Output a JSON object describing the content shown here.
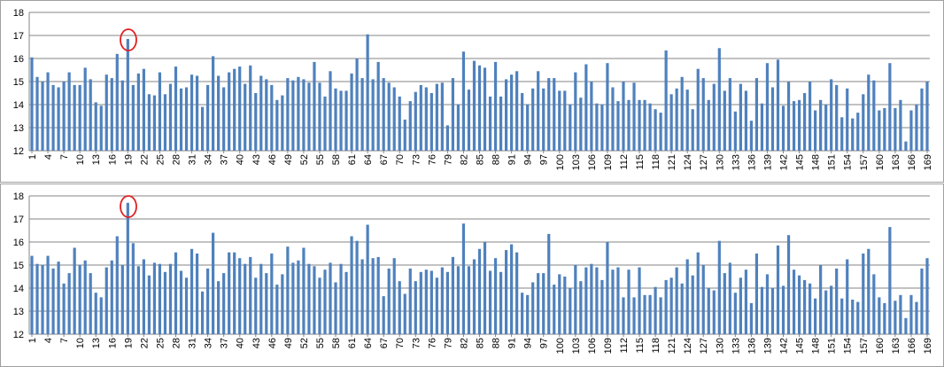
{
  "chart_data": [
    {
      "type": "bar",
      "color": "#4f81bd",
      "grid": true,
      "ylim": [
        12,
        18
      ],
      "yticks": [
        12,
        13,
        14,
        15,
        16,
        17,
        18
      ],
      "categories": [
        "1",
        null,
        null,
        "4",
        null,
        null,
        "7",
        null,
        null,
        "10",
        null,
        null,
        "13",
        null,
        null,
        "16",
        null,
        null,
        "19",
        null,
        null,
        "22",
        null,
        null,
        "25",
        null,
        null,
        "28",
        null,
        null,
        "31",
        null,
        null,
        "34",
        null,
        null,
        "37",
        null,
        null,
        "40",
        null,
        null,
        "43",
        null,
        null,
        "46",
        null,
        null,
        "49",
        null,
        null,
        "52",
        null,
        null,
        "55",
        null,
        null,
        "58",
        null,
        null,
        "61",
        null,
        null,
        "64",
        null,
        null,
        "67",
        null,
        null,
        "70",
        null,
        null,
        "73",
        null,
        null,
        "76",
        null,
        null,
        "79",
        null,
        null,
        "82",
        null,
        null,
        "85",
        null,
        null,
        "88",
        null,
        null,
        "91",
        null,
        null,
        "94",
        null,
        null,
        "97",
        null,
        null,
        "100",
        null,
        null,
        "103",
        null,
        null,
        "106",
        null,
        null,
        "109",
        null,
        null,
        "112",
        null,
        null,
        "115",
        null,
        null,
        "118",
        null,
        null,
        "121",
        null,
        null,
        "124",
        null,
        null,
        "127",
        null,
        null,
        "130",
        null,
        null,
        "133",
        null,
        null,
        "136",
        null,
        null,
        "139",
        null,
        null,
        "142",
        null,
        null,
        "145",
        null,
        null,
        "148",
        null,
        null,
        "151",
        null,
        null,
        "154",
        null,
        null,
        "157",
        null,
        null,
        "160",
        null,
        null,
        "163",
        null,
        null,
        "166",
        null,
        null,
        "169"
      ],
      "values": [
        16.05,
        15.2,
        15.0,
        15.4,
        14.85,
        14.75,
        15.0,
        15.4,
        14.85,
        14.85,
        15.6,
        15.1,
        14.1,
        13.95,
        15.3,
        15.15,
        16.2,
        15.05,
        16.85,
        14.85,
        15.35,
        15.55,
        14.45,
        14.4,
        15.4,
        14.45,
        14.9,
        15.65,
        14.7,
        14.75,
        15.3,
        15.25,
        13.9,
        14.85,
        16.1,
        15.25,
        14.75,
        15.4,
        15.55,
        15.65,
        14.9,
        15.7,
        14.5,
        15.25,
        15.1,
        14.85,
        14.2,
        14.4,
        15.15,
        15.05,
        15.2,
        15.1,
        14.95,
        15.85,
        14.95,
        14.35,
        15.45,
        14.7,
        14.6,
        14.6,
        15.35,
        16.0,
        15.15,
        17.05,
        15.1,
        15.85,
        15.15,
        14.95,
        14.75,
        14.35,
        13.35,
        14.15,
        14.55,
        14.85,
        14.75,
        14.5,
        14.9,
        14.95,
        13.1,
        15.15,
        14.0,
        16.3,
        14.65,
        15.9,
        15.7,
        15.6,
        14.35,
        15.85,
        14.35,
        15.1,
        15.3,
        15.45,
        14.5,
        14.0,
        14.7,
        15.45,
        14.7,
        15.15,
        15.15,
        14.6,
        14.6,
        14.0,
        15.4,
        14.3,
        15.75,
        15.0,
        14.05,
        14.0,
        15.8,
        14.75,
        14.15,
        15.0,
        14.2,
        14.95,
        14.2,
        14.2,
        14.05,
        13.8,
        13.65,
        16.35,
        14.45,
        14.7,
        15.2,
        14.65,
        13.8,
        15.55,
        15.15,
        14.2,
        14.9,
        16.45,
        14.6,
        15.15,
        13.7,
        14.9,
        14.6,
        13.3,
        15.15,
        14.05,
        15.8,
        14.75,
        15.95,
        13.95,
        15.0,
        14.15,
        14.2,
        14.5,
        15.0,
        13.75,
        14.2,
        14.0,
        15.1,
        14.85,
        13.45,
        14.7,
        13.4,
        13.65,
        14.45,
        15.3,
        15.05,
        13.75,
        13.85,
        15.8,
        13.85,
        14.2,
        12.4,
        13.75,
        14.0,
        14.7,
        15.0
      ]
    },
    {
      "type": "bar",
      "color": "#4f81bd",
      "grid": true,
      "ylim": [
        12,
        18
      ],
      "yticks": [
        12,
        13,
        14,
        15,
        16,
        17,
        18
      ],
      "categories": [
        "1",
        null,
        null,
        "4",
        null,
        null,
        "7",
        null,
        null,
        "10",
        null,
        null,
        "13",
        null,
        null,
        "16",
        null,
        null,
        "19",
        null,
        null,
        "22",
        null,
        null,
        "25",
        null,
        null,
        "28",
        null,
        null,
        "31",
        null,
        null,
        "34",
        null,
        null,
        "37",
        null,
        null,
        "40",
        null,
        null,
        "43",
        null,
        null,
        "46",
        null,
        null,
        "49",
        null,
        null,
        "52",
        null,
        null,
        "55",
        null,
        null,
        "58",
        null,
        null,
        "61",
        null,
        null,
        "64",
        null,
        null,
        "67",
        null,
        null,
        "70",
        null,
        null,
        "73",
        null,
        null,
        "76",
        null,
        null,
        "79",
        null,
        null,
        "82",
        null,
        null,
        "85",
        null,
        null,
        "88",
        null,
        null,
        "91",
        null,
        null,
        "94",
        null,
        null,
        "97",
        null,
        null,
        "100",
        null,
        null,
        "103",
        null,
        null,
        "106",
        null,
        null,
        "109",
        null,
        null,
        "112",
        null,
        null,
        "115",
        null,
        null,
        "118",
        null,
        null,
        "121",
        null,
        null,
        "124",
        null,
        null,
        "127",
        null,
        null,
        "130",
        null,
        null,
        "133",
        null,
        null,
        "136",
        null,
        null,
        "139",
        null,
        null,
        "142",
        null,
        null,
        "145",
        null,
        null,
        "148",
        null,
        null,
        "151",
        null,
        null,
        "154",
        null,
        null,
        "157",
        null,
        null,
        "160",
        null,
        null,
        "163",
        null,
        null,
        "166",
        null,
        null,
        "169"
      ],
      "values": [
        15.4,
        15.05,
        15.0,
        15.4,
        14.85,
        15.15,
        14.2,
        14.65,
        15.75,
        15.0,
        15.2,
        14.65,
        13.8,
        13.6,
        14.9,
        15.2,
        16.25,
        15.0,
        17.7,
        15.95,
        14.95,
        15.25,
        14.55,
        15.1,
        15.05,
        14.7,
        15.05,
        15.55,
        14.75,
        14.45,
        15.7,
        15.5,
        13.85,
        14.85,
        16.4,
        14.3,
        14.65,
        15.55,
        15.55,
        15.3,
        15.05,
        15.35,
        14.45,
        15.05,
        14.65,
        15.5,
        14.15,
        14.6,
        15.8,
        15.1,
        15.2,
        15.75,
        15.05,
        14.95,
        14.45,
        14.8,
        15.1,
        14.25,
        15.05,
        14.7,
        16.25,
        16.05,
        15.25,
        16.75,
        15.3,
        15.35,
        13.65,
        14.85,
        15.3,
        14.3,
        13.75,
        14.85,
        14.3,
        14.7,
        14.8,
        14.75,
        14.45,
        14.9,
        14.7,
        15.35,
        14.95,
        16.8,
        14.95,
        15.25,
        15.7,
        16.0,
        14.75,
        15.3,
        14.7,
        15.65,
        15.9,
        15.55,
        13.8,
        13.7,
        14.25,
        14.65,
        14.65,
        16.35,
        14.15,
        14.6,
        14.5,
        14.0,
        15.0,
        14.3,
        14.9,
        15.05,
        14.9,
        14.35,
        16.0,
        14.8,
        14.9,
        13.6,
        14.8,
        13.6,
        14.9,
        13.7,
        13.7,
        14.05,
        13.6,
        14.35,
        14.45,
        14.9,
        14.2,
        15.25,
        14.55,
        15.55,
        15.0,
        14.0,
        13.9,
        16.05,
        14.65,
        15.1,
        13.8,
        14.45,
        14.8,
        13.35,
        15.5,
        14.05,
        14.6,
        14.0,
        15.85,
        14.1,
        16.3,
        14.8,
        14.55,
        14.35,
        14.2,
        13.55,
        15.0,
        13.9,
        14.1,
        14.85,
        13.55,
        15.25,
        13.5,
        13.4,
        15.5,
        15.7,
        14.6,
        13.6,
        13.35,
        16.65,
        13.45,
        13.7,
        12.7,
        13.7,
        13.4,
        14.85,
        15.3
      ]
    }
  ]
}
